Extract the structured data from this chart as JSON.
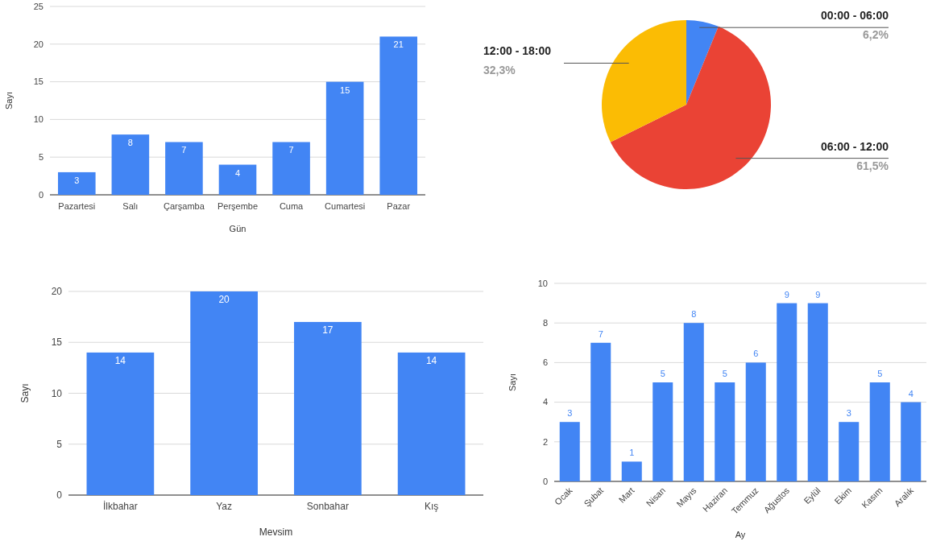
{
  "chart_data": [
    {
      "type": "bar",
      "xlabel": "Gün",
      "ylabel": "Sayı",
      "categories": [
        "Pazartesi",
        "Salı",
        "Çarşamba",
        "Perşembe",
        "Cuma",
        "Cumartesi",
        "Pazar"
      ],
      "values": [
        3,
        8,
        7,
        4,
        7,
        15,
        21
      ],
      "color": "#4285f4",
      "ylim": [
        0,
        25
      ],
      "yticks": [
        0,
        5,
        10,
        15,
        20,
        25
      ],
      "grid": "y",
      "data_labels": true
    },
    {
      "type": "pie",
      "categories": [
        "00:00 - 06:00",
        "06:00 - 12:00",
        "12:00 - 18:00"
      ],
      "values": [
        6.2,
        61.5,
        32.3
      ],
      "value_labels": [
        "6,2%",
        "61,5%",
        "32,3%"
      ],
      "colors": [
        "#4285f4",
        "#ea4335",
        "#fbbc04"
      ]
    },
    {
      "type": "bar",
      "xlabel": "Mevsim",
      "ylabel": "Sayı",
      "categories": [
        "İlkbahar",
        "Yaz",
        "Sonbahar",
        "Kış"
      ],
      "values": [
        14,
        20,
        17,
        14
      ],
      "color": "#4285f4",
      "ylim": [
        0,
        20
      ],
      "yticks": [
        0,
        5,
        10,
        15,
        20
      ],
      "grid": "y",
      "data_labels": true
    },
    {
      "type": "bar",
      "xlabel": "Ay",
      "ylabel": "Sayı",
      "categories": [
        "Ocak",
        "Şubat",
        "Mart",
        "Nisan",
        "Mayıs",
        "Haziran",
        "Temmuz",
        "Ağustos",
        "Eylül",
        "Ekim",
        "Kasım",
        "Aralık"
      ],
      "values": [
        3,
        7,
        1,
        5,
        8,
        5,
        6,
        9,
        9,
        3,
        5,
        4
      ],
      "color": "#4285f4",
      "ylim": [
        0,
        10
      ],
      "yticks": [
        0,
        2,
        4,
        6,
        8,
        10
      ],
      "grid": "y",
      "data_labels": true
    }
  ]
}
